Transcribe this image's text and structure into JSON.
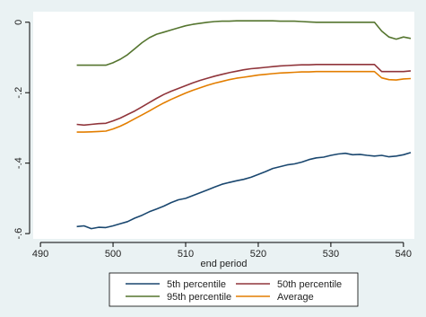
{
  "chart_data": {
    "type": "line",
    "title": "",
    "xlabel": "end period",
    "ylabel": "",
    "xlim": [
      489,
      541.5
    ],
    "ylim": [
      -0.615,
      0.03
    ],
    "xticks": [
      490,
      500,
      510,
      520,
      530,
      540
    ],
    "yticks": [
      0,
      -0.2,
      -0.4,
      -0.6
    ],
    "xtick_labels": [
      "490",
      "500",
      "510",
      "520",
      "530",
      "540"
    ],
    "ytick_labels": [
      "0",
      "-.2",
      "-.4",
      "-.6"
    ],
    "grid": false,
    "legend": {
      "placement": "bottom",
      "columns": 2
    },
    "series": [
      {
        "name": "5th percentile",
        "color": "#1a476f",
        "points": [
          [
            495,
            -0.58
          ],
          [
            496,
            -0.578
          ],
          [
            497,
            -0.586
          ],
          [
            498,
            -0.582
          ],
          [
            499,
            -0.583
          ],
          [
            500,
            -0.578
          ],
          [
            501,
            -0.572
          ],
          [
            502,
            -0.566
          ],
          [
            503,
            -0.556
          ],
          [
            504,
            -0.548
          ],
          [
            505,
            -0.538
          ],
          [
            506,
            -0.53
          ],
          [
            507,
            -0.522
          ],
          [
            508,
            -0.512
          ],
          [
            509,
            -0.504
          ],
          [
            510,
            -0.5
          ],
          [
            511,
            -0.492
          ],
          [
            512,
            -0.484
          ],
          [
            513,
            -0.476
          ],
          [
            514,
            -0.468
          ],
          [
            515,
            -0.46
          ],
          [
            516,
            -0.455
          ],
          [
            517,
            -0.45
          ],
          [
            518,
            -0.446
          ],
          [
            519,
            -0.44
          ],
          [
            520,
            -0.432
          ],
          [
            521,
            -0.424
          ],
          [
            522,
            -0.415
          ],
          [
            523,
            -0.41
          ],
          [
            524,
            -0.405
          ],
          [
            525,
            -0.402
          ],
          [
            526,
            -0.397
          ],
          [
            527,
            -0.39
          ],
          [
            528,
            -0.385
          ],
          [
            529,
            -0.383
          ],
          [
            530,
            -0.378
          ],
          [
            531,
            -0.374
          ],
          [
            532,
            -0.372
          ],
          [
            533,
            -0.376
          ],
          [
            534,
            -0.375
          ],
          [
            535,
            -0.378
          ],
          [
            536,
            -0.38
          ],
          [
            537,
            -0.378
          ],
          [
            538,
            -0.382
          ],
          [
            539,
            -0.38
          ],
          [
            540,
            -0.376
          ],
          [
            541,
            -0.37
          ]
        ]
      },
      {
        "name": "50th percentile",
        "color": "#90353b",
        "points": [
          [
            495,
            -0.29
          ],
          [
            496,
            -0.292
          ],
          [
            497,
            -0.29
          ],
          [
            498,
            -0.288
          ],
          [
            499,
            -0.287
          ],
          [
            500,
            -0.28
          ],
          [
            501,
            -0.272
          ],
          [
            502,
            -0.262
          ],
          [
            503,
            -0.252
          ],
          [
            504,
            -0.24
          ],
          [
            505,
            -0.228
          ],
          [
            506,
            -0.216
          ],
          [
            507,
            -0.205
          ],
          [
            508,
            -0.196
          ],
          [
            509,
            -0.188
          ],
          [
            510,
            -0.18
          ],
          [
            511,
            -0.172
          ],
          [
            512,
            -0.165
          ],
          [
            513,
            -0.159
          ],
          [
            514,
            -0.153
          ],
          [
            515,
            -0.148
          ],
          [
            516,
            -0.143
          ],
          [
            517,
            -0.139
          ],
          [
            518,
            -0.135
          ],
          [
            519,
            -0.132
          ],
          [
            520,
            -0.13
          ],
          [
            521,
            -0.128
          ],
          [
            522,
            -0.126
          ],
          [
            523,
            -0.124
          ],
          [
            524,
            -0.123
          ],
          [
            525,
            -0.122
          ],
          [
            526,
            -0.121
          ],
          [
            527,
            -0.121
          ],
          [
            528,
            -0.12
          ],
          [
            529,
            -0.12
          ],
          [
            530,
            -0.12
          ],
          [
            531,
            -0.12
          ],
          [
            532,
            -0.12
          ],
          [
            533,
            -0.12
          ],
          [
            534,
            -0.12
          ],
          [
            535,
            -0.12
          ],
          [
            536,
            -0.12
          ],
          [
            537,
            -0.14
          ],
          [
            538,
            -0.14
          ],
          [
            539,
            -0.14
          ],
          [
            540,
            -0.14
          ],
          [
            541,
            -0.138
          ]
        ]
      },
      {
        "name": "95th percentile",
        "color": "#55752f",
        "points": [
          [
            495,
            -0.122
          ],
          [
            496,
            -0.122
          ],
          [
            497,
            -0.122
          ],
          [
            498,
            -0.122
          ],
          [
            499,
            -0.122
          ],
          [
            500,
            -0.115
          ],
          [
            501,
            -0.105
          ],
          [
            502,
            -0.092
          ],
          [
            503,
            -0.075
          ],
          [
            504,
            -0.058
          ],
          [
            505,
            -0.044
          ],
          [
            506,
            -0.034
          ],
          [
            507,
            -0.028
          ],
          [
            508,
            -0.022
          ],
          [
            509,
            -0.016
          ],
          [
            510,
            -0.01
          ],
          [
            511,
            -0.006
          ],
          [
            512,
            -0.003
          ],
          [
            513,
            0.0
          ],
          [
            514,
            0.002
          ],
          [
            515,
            0.003
          ],
          [
            516,
            0.003
          ],
          [
            517,
            0.004
          ],
          [
            518,
            0.004
          ],
          [
            519,
            0.004
          ],
          [
            520,
            0.004
          ],
          [
            521,
            0.004
          ],
          [
            522,
            0.004
          ],
          [
            523,
            0.003
          ],
          [
            524,
            0.003
          ],
          [
            525,
            0.003
          ],
          [
            526,
            0.002
          ],
          [
            527,
            0.001
          ],
          [
            528,
            0.0
          ],
          [
            529,
            0.0
          ],
          [
            530,
            0.0
          ],
          [
            531,
            0.0
          ],
          [
            532,
            0.0
          ],
          [
            533,
            0.0
          ],
          [
            534,
            0.0
          ],
          [
            535,
            0.0
          ],
          [
            536,
            0.0
          ],
          [
            537,
            -0.025
          ],
          [
            538,
            -0.042
          ],
          [
            539,
            -0.048
          ],
          [
            540,
            -0.042
          ],
          [
            541,
            -0.046
          ]
        ]
      },
      {
        "name": "Average",
        "color": "#e37e00",
        "points": [
          [
            495,
            -0.312
          ],
          [
            496,
            -0.312
          ],
          [
            497,
            -0.311
          ],
          [
            498,
            -0.31
          ],
          [
            499,
            -0.309
          ],
          [
            500,
            -0.303
          ],
          [
            501,
            -0.295
          ],
          [
            502,
            -0.285
          ],
          [
            503,
            -0.274
          ],
          [
            504,
            -0.263
          ],
          [
            505,
            -0.252
          ],
          [
            506,
            -0.24
          ],
          [
            507,
            -0.229
          ],
          [
            508,
            -0.219
          ],
          [
            509,
            -0.21
          ],
          [
            510,
            -0.201
          ],
          [
            511,
            -0.193
          ],
          [
            512,
            -0.186
          ],
          [
            513,
            -0.179
          ],
          [
            514,
            -0.173
          ],
          [
            515,
            -0.168
          ],
          [
            516,
            -0.163
          ],
          [
            517,
            -0.159
          ],
          [
            518,
            -0.156
          ],
          [
            519,
            -0.153
          ],
          [
            520,
            -0.15
          ],
          [
            521,
            -0.148
          ],
          [
            522,
            -0.146
          ],
          [
            523,
            -0.144
          ],
          [
            524,
            -0.143
          ],
          [
            525,
            -0.142
          ],
          [
            526,
            -0.141
          ],
          [
            527,
            -0.141
          ],
          [
            528,
            -0.14
          ],
          [
            529,
            -0.14
          ],
          [
            530,
            -0.14
          ],
          [
            531,
            -0.14
          ],
          [
            532,
            -0.14
          ],
          [
            533,
            -0.14
          ],
          [
            534,
            -0.14
          ],
          [
            535,
            -0.14
          ],
          [
            536,
            -0.14
          ],
          [
            537,
            -0.158
          ],
          [
            538,
            -0.163
          ],
          [
            539,
            -0.164
          ],
          [
            540,
            -0.161
          ],
          [
            541,
            -0.16
          ]
        ]
      }
    ]
  }
}
